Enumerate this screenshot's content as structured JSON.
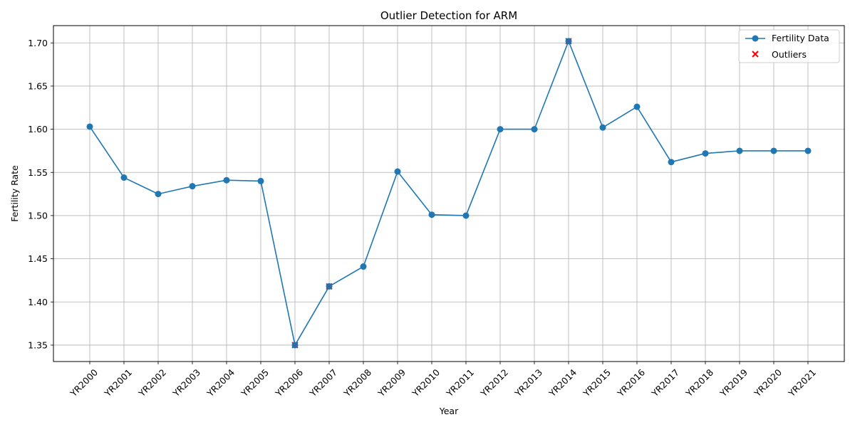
{
  "chart_data": {
    "type": "line",
    "title": "Outlier Detection for ARM",
    "xlabel": "Year",
    "ylabel": "Fertility Rate",
    "categories": [
      "YR2000",
      "YR2001",
      "YR2002",
      "YR2003",
      "YR2004",
      "YR2005",
      "YR2006",
      "YR2007",
      "YR2008",
      "YR2009",
      "YR2010",
      "YR2011",
      "YR2012",
      "YR2013",
      "YR2014",
      "YR2015",
      "YR2016",
      "YR2017",
      "YR2018",
      "YR2019",
      "YR2020",
      "YR2021"
    ],
    "series": [
      {
        "name": "Fertility Data",
        "color": "#1f77b4",
        "marker": "circle",
        "values": [
          1.603,
          1.544,
          1.525,
          1.534,
          1.541,
          1.54,
          1.35,
          1.418,
          1.441,
          1.551,
          1.501,
          1.5,
          1.6,
          1.6,
          1.702,
          1.602,
          1.626,
          1.562,
          1.572,
          1.575,
          1.575,
          1.575
        ]
      },
      {
        "name": "Outliers",
        "color": "#ff0000",
        "marker": "x",
        "points": [
          {
            "category": "YR2006",
            "value": 1.35
          },
          {
            "category": "YR2007",
            "value": 1.418
          },
          {
            "category": "YR2014",
            "value": 1.702
          }
        ]
      }
    ],
    "ylim": [
      1.331,
      1.72
    ],
    "yticks": [
      1.35,
      1.4,
      1.45,
      1.5,
      1.55,
      1.6,
      1.65,
      1.7
    ],
    "ytick_labels": [
      "1.35",
      "1.40",
      "1.45",
      "1.50",
      "1.55",
      "1.60",
      "1.65",
      "1.70"
    ],
    "grid": true,
    "legend_position": "top-right"
  }
}
